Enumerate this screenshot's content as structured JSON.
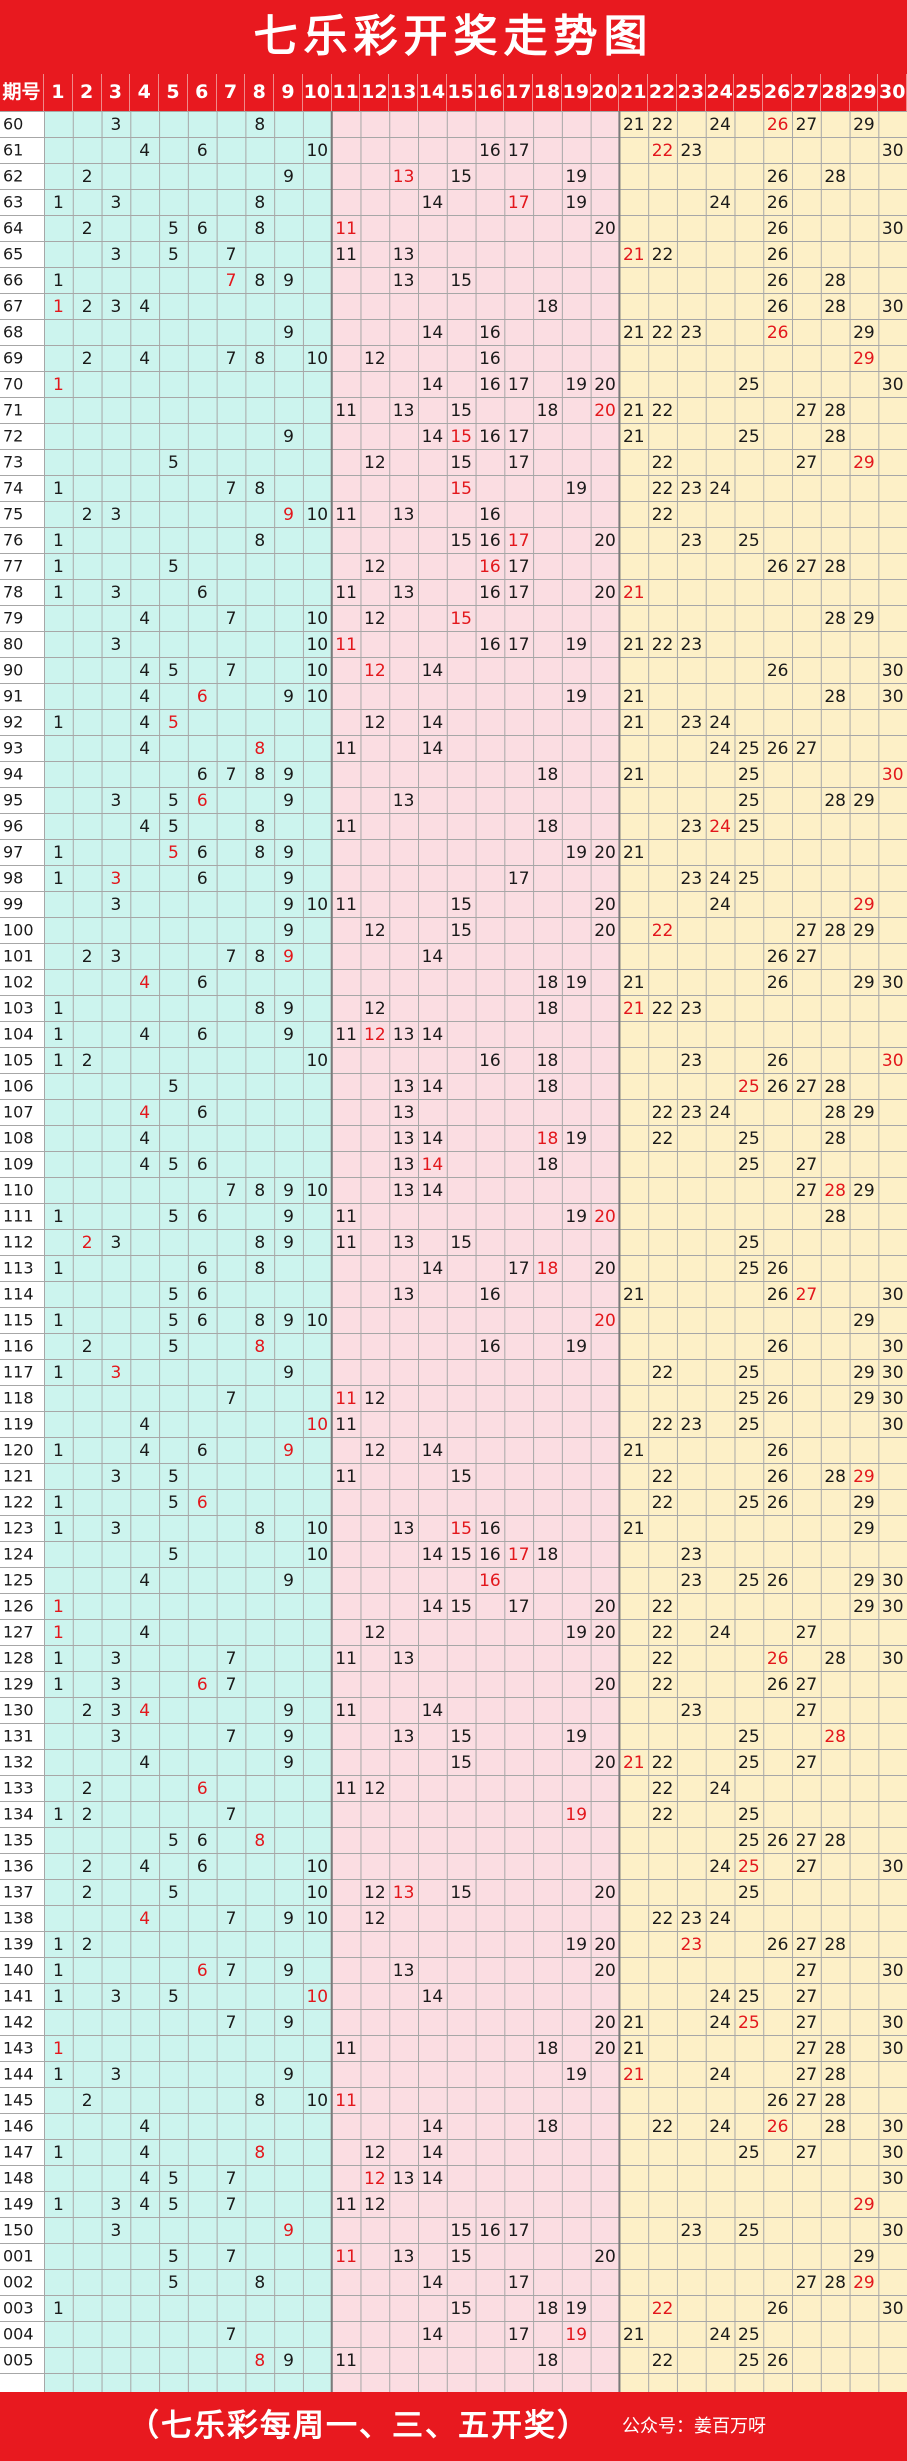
{
  "title": "七乐彩开奖走势图",
  "header": {
    "period_label": "期号",
    "numbers": [
      "1",
      "2",
      "3",
      "4",
      "5",
      "6",
      "7",
      "8",
      "9",
      "10",
      "11",
      "12",
      "13",
      "14",
      "15",
      "16",
      "17",
      "18",
      "19",
      "20",
      "21",
      "22",
      "23",
      "24",
      "25",
      "26",
      "27",
      "28",
      "29",
      "30"
    ]
  },
  "zones": [
    {
      "name": "zone-1-10",
      "range": [
        1,
        10
      ],
      "color": "#ccf4ee"
    },
    {
      "name": "zone-11-20",
      "range": [
        11,
        20
      ],
      "color": "#fbdde2"
    },
    {
      "name": "zone-21-30",
      "range": [
        21,
        30
      ],
      "color": "#fdf0c7"
    }
  ],
  "colors": {
    "header": "#e8191f",
    "special_number": "#e3171c",
    "number": "#1a1a1a",
    "grid_line": "#a7a7a7"
  },
  "draws": [
    {
      "period": "60",
      "numbers": [
        3,
        8,
        21,
        22,
        24,
        27,
        29
      ],
      "special": 26
    },
    {
      "period": "61",
      "numbers": [
        4,
        6,
        10,
        16,
        17,
        23,
        30
      ],
      "special": 22
    },
    {
      "period": "62",
      "numbers": [
        2,
        9,
        15,
        19,
        26,
        28
      ],
      "special": 13
    },
    {
      "period": "63",
      "numbers": [
        1,
        3,
        8,
        14,
        19,
        24,
        26
      ],
      "special": 17
    },
    {
      "period": "64",
      "numbers": [
        2,
        5,
        6,
        8,
        20,
        26,
        30
      ],
      "special": 11
    },
    {
      "period": "65",
      "numbers": [
        3,
        5,
        7,
        11,
        13,
        22,
        26
      ],
      "special": 21
    },
    {
      "period": "66",
      "numbers": [
        1,
        8,
        9,
        13,
        15,
        26,
        28
      ],
      "special": 7
    },
    {
      "period": "67",
      "numbers": [
        2,
        3,
        4,
        18,
        26,
        28,
        30
      ],
      "special": 1
    },
    {
      "period": "68",
      "numbers": [
        9,
        14,
        16,
        21,
        22,
        23,
        29
      ],
      "special": 26
    },
    {
      "period": "69",
      "numbers": [
        2,
        4,
        7,
        8,
        10,
        12,
        16
      ],
      "special": 29
    },
    {
      "period": "70",
      "numbers": [
        14,
        16,
        17,
        19,
        20,
        25,
        30
      ],
      "special": 1
    },
    {
      "period": "71",
      "numbers": [
        11,
        13,
        15,
        18,
        21,
        22,
        27,
        28
      ],
      "special": 20
    },
    {
      "period": "72",
      "numbers": [
        9,
        14,
        16,
        17,
        21,
        25,
        28
      ],
      "special": 15
    },
    {
      "period": "73",
      "numbers": [
        5,
        12,
        15,
        17,
        22,
        27
      ],
      "special": 29
    },
    {
      "period": "74",
      "numbers": [
        1,
        7,
        8,
        19,
        22,
        23,
        24
      ],
      "special": 15
    },
    {
      "period": "75",
      "numbers": [
        2,
        3,
        10,
        11,
        13,
        16,
        22
      ],
      "special": 9
    },
    {
      "period": "76",
      "numbers": [
        1,
        8,
        15,
        16,
        20,
        23,
        25
      ],
      "special": 17
    },
    {
      "period": "77",
      "numbers": [
        1,
        5,
        12,
        17,
        26,
        27,
        28
      ],
      "special": 16
    },
    {
      "period": "78",
      "numbers": [
        1,
        3,
        6,
        11,
        13,
        16,
        17,
        20
      ],
      "special": 21
    },
    {
      "period": "79",
      "numbers": [
        4,
        7,
        10,
        12,
        28,
        29
      ],
      "special": 15
    },
    {
      "period": "80",
      "numbers": [
        3,
        10,
        16,
        17,
        19,
        21,
        22,
        23
      ],
      "special": 11
    },
    {
      "period": "90",
      "numbers": [
        4,
        5,
        7,
        10,
        14,
        26,
        30
      ],
      "special": 12
    },
    {
      "period": "91",
      "numbers": [
        4,
        9,
        10,
        19,
        21,
        28,
        30
      ],
      "special": 6
    },
    {
      "period": "92",
      "numbers": [
        1,
        4,
        12,
        14,
        21,
        23,
        24
      ],
      "special": 5
    },
    {
      "period": "93",
      "numbers": [
        4,
        11,
        14,
        24,
        25,
        26,
        27
      ],
      "special": 8
    },
    {
      "period": "94",
      "numbers": [
        6,
        7,
        8,
        9,
        18,
        21,
        25
      ],
      "special": 30
    },
    {
      "period": "95",
      "numbers": [
        3,
        5,
        9,
        13,
        25,
        28,
        29
      ],
      "special": 6
    },
    {
      "period": "96",
      "numbers": [
        4,
        5,
        8,
        11,
        18,
        23,
        25
      ],
      "special": 24
    },
    {
      "period": "97",
      "numbers": [
        1,
        6,
        8,
        9,
        19,
        20,
        21
      ],
      "special": 5
    },
    {
      "period": "98",
      "numbers": [
        1,
        6,
        9,
        17,
        23,
        24,
        25
      ],
      "special": 3
    },
    {
      "period": "99",
      "numbers": [
        3,
        9,
        10,
        11,
        15,
        20,
        24
      ],
      "special": 29
    },
    {
      "period": "100",
      "numbers": [
        9,
        12,
        15,
        20,
        27,
        28,
        29
      ],
      "special": 22
    },
    {
      "period": "101",
      "numbers": [
        2,
        3,
        7,
        8,
        14,
        26,
        27
      ],
      "special": 9
    },
    {
      "period": "102",
      "numbers": [
        6,
        18,
        19,
        21,
        26,
        29,
        30
      ],
      "special": 4
    },
    {
      "period": "103",
      "numbers": [
        1,
        8,
        9,
        12,
        18,
        22,
        23
      ],
      "special": 21
    },
    {
      "period": "104",
      "numbers": [
        1,
        4,
        6,
        9,
        11,
        13,
        14
      ],
      "special": 12
    },
    {
      "period": "105",
      "numbers": [
        1,
        2,
        10,
        16,
        18,
        23,
        26
      ],
      "special": 30
    },
    {
      "period": "106",
      "numbers": [
        5,
        13,
        14,
        18,
        26,
        27,
        28
      ],
      "special": 25
    },
    {
      "period": "107",
      "numbers": [
        6,
        13,
        22,
        23,
        24,
        28,
        29
      ],
      "special": 4
    },
    {
      "period": "108",
      "numbers": [
        4,
        13,
        14,
        19,
        22,
        25,
        28
      ],
      "special": 18
    },
    {
      "period": "109",
      "numbers": [
        4,
        5,
        6,
        13,
        18,
        25,
        27
      ],
      "special": 14
    },
    {
      "period": "110",
      "numbers": [
        7,
        8,
        9,
        10,
        13,
        14,
        27,
        29
      ],
      "special": 28
    },
    {
      "period": "111",
      "numbers": [
        1,
        5,
        6,
        9,
        11,
        19,
        28
      ],
      "special": 20
    },
    {
      "period": "112",
      "numbers": [
        3,
        8,
        9,
        11,
        13,
        15,
        25
      ],
      "special": 2
    },
    {
      "period": "113",
      "numbers": [
        1,
        6,
        8,
        14,
        17,
        20,
        25,
        26
      ],
      "special": 18
    },
    {
      "period": "114",
      "numbers": [
        5,
        6,
        13,
        16,
        21,
        26,
        30
      ],
      "special": 27
    },
    {
      "period": "115",
      "numbers": [
        1,
        5,
        6,
        8,
        9,
        10,
        29
      ],
      "special": 20
    },
    {
      "period": "116",
      "numbers": [
        2,
        5,
        16,
        19,
        26,
        30
      ],
      "special": 8
    },
    {
      "period": "117",
      "numbers": [
        1,
        9,
        22,
        25,
        29,
        30
      ],
      "special": 3
    },
    {
      "period": "118",
      "numbers": [
        7,
        12,
        25,
        26,
        29,
        30
      ],
      "special": 11
    },
    {
      "period": "119",
      "numbers": [
        4,
        11,
        22,
        23,
        25,
        30
      ],
      "special": 10
    },
    {
      "period": "120",
      "numbers": [
        1,
        4,
        6,
        12,
        14,
        21,
        26
      ],
      "special": 9
    },
    {
      "period": "121",
      "numbers": [
        3,
        5,
        11,
        15,
        22,
        26,
        28
      ],
      "special": 29
    },
    {
      "period": "122",
      "numbers": [
        1,
        5,
        22,
        25,
        26,
        29
      ],
      "special": 6
    },
    {
      "period": "123",
      "numbers": [
        1,
        3,
        8,
        10,
        13,
        16,
        21,
        29
      ],
      "special": 15
    },
    {
      "period": "124",
      "numbers": [
        5,
        10,
        14,
        15,
        16,
        18,
        23
      ],
      "special": 17
    },
    {
      "period": "125",
      "numbers": [
        4,
        9,
        23,
        25,
        26,
        29,
        30
      ],
      "special": 16
    },
    {
      "period": "126",
      "numbers": [
        14,
        15,
        17,
        20,
        22,
        29,
        30
      ],
      "special": 1
    },
    {
      "period": "127",
      "numbers": [
        4,
        12,
        19,
        20,
        22,
        24,
        27
      ],
      "special": 1
    },
    {
      "period": "128",
      "numbers": [
        1,
        3,
        7,
        11,
        13,
        22,
        28,
        30
      ],
      "special": 26
    },
    {
      "period": "129",
      "numbers": [
        1,
        3,
        7,
        20,
        22,
        26,
        27
      ],
      "special": 6
    },
    {
      "period": "130",
      "numbers": [
        2,
        3,
        9,
        11,
        14,
        23,
        27
      ],
      "special": 4
    },
    {
      "period": "131",
      "numbers": [
        3,
        7,
        9,
        13,
        15,
        19,
        25
      ],
      "special": 28
    },
    {
      "period": "132",
      "numbers": [
        4,
        9,
        15,
        20,
        22,
        25,
        27
      ],
      "special": 21
    },
    {
      "period": "133",
      "numbers": [
        2,
        11,
        12,
        22,
        24
      ],
      "special": 6
    },
    {
      "period": "134",
      "numbers": [
        1,
        2,
        7,
        22,
        25
      ],
      "special": 19
    },
    {
      "period": "135",
      "numbers": [
        5,
        6,
        25,
        26,
        27,
        28
      ],
      "special": 8
    },
    {
      "period": "136",
      "numbers": [
        2,
        4,
        6,
        10,
        24,
        27,
        30
      ],
      "special": 25
    },
    {
      "period": "137",
      "numbers": [
        2,
        5,
        10,
        12,
        15,
        20,
        25
      ],
      "special": 13
    },
    {
      "period": "138",
      "numbers": [
        7,
        9,
        10,
        12,
        22,
        23,
        24
      ],
      "special": 4
    },
    {
      "period": "139",
      "numbers": [
        1,
        2,
        19,
        20,
        26,
        27,
        28
      ],
      "special": 23
    },
    {
      "period": "140",
      "numbers": [
        1,
        7,
        9,
        13,
        20,
        27,
        30
      ],
      "special": 6
    },
    {
      "period": "141",
      "numbers": [
        1,
        3,
        5,
        14,
        24,
        25,
        27
      ],
      "special": 10
    },
    {
      "period": "142",
      "numbers": [
        7,
        9,
        20,
        21,
        24,
        27,
        30
      ],
      "special": 25
    },
    {
      "period": "143",
      "numbers": [
        11,
        18,
        20,
        21,
        27,
        28,
        30
      ],
      "special": 1
    },
    {
      "period": "144",
      "numbers": [
        1,
        3,
        9,
        19,
        24,
        27,
        28
      ],
      "special": 21
    },
    {
      "period": "145",
      "numbers": [
        2,
        8,
        10,
        26,
        27,
        28
      ],
      "special": 11
    },
    {
      "period": "146",
      "numbers": [
        4,
        14,
        18,
        22,
        24,
        28,
        30
      ],
      "special": 26
    },
    {
      "period": "147",
      "numbers": [
        1,
        4,
        12,
        14,
        25,
        27,
        30
      ],
      "special": 8
    },
    {
      "period": "148",
      "numbers": [
        4,
        5,
        7,
        13,
        14,
        30
      ],
      "special": 12
    },
    {
      "period": "149",
      "numbers": [
        1,
        3,
        4,
        5,
        7,
        11,
        12
      ],
      "special": 29
    },
    {
      "period": "150",
      "numbers": [
        3,
        15,
        16,
        17,
        23,
        25,
        30
      ],
      "special": 9
    },
    {
      "period": "001",
      "numbers": [
        5,
        7,
        13,
        15,
        20,
        29
      ],
      "special": 11
    },
    {
      "period": "002",
      "numbers": [
        5,
        8,
        14,
        17,
        27,
        28
      ],
      "special": 29
    },
    {
      "period": "003",
      "numbers": [
        1,
        15,
        18,
        19,
        26,
        30
      ],
      "special": 22
    },
    {
      "period": "004",
      "numbers": [
        7,
        14,
        17,
        21,
        24,
        25
      ],
      "special": 19
    },
    {
      "period": "005",
      "numbers": [
        9,
        11,
        18,
        22,
        25,
        26
      ],
      "special": 8
    }
  ],
  "footer": {
    "schedule": "（七乐彩每周一、三、五开奖）",
    "credit": "公众号：姜百万呀"
  }
}
